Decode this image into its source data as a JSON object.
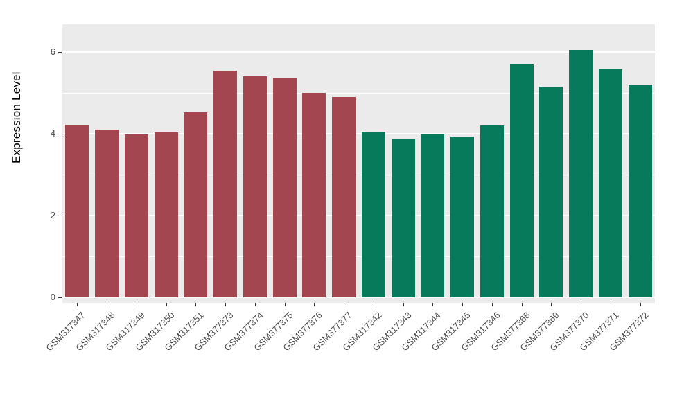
{
  "chart_data": {
    "type": "bar",
    "title": "",
    "xlabel": "",
    "ylabel": "Expression Level",
    "categories": [
      "GSM317347",
      "GSM317348",
      "GSM317349",
      "GSM317350",
      "GSM317351",
      "GSM377373",
      "GSM377374",
      "GSM377375",
      "GSM377376",
      "GSM377377",
      "GSM317342",
      "GSM317343",
      "GSM317344",
      "GSM317345",
      "GSM317346",
      "GSM377368",
      "GSM377369",
      "GSM377370",
      "GSM377371",
      "GSM377372"
    ],
    "values": [
      4.22,
      4.1,
      3.98,
      4.04,
      4.52,
      5.55,
      5.4,
      5.38,
      5.0,
      4.9,
      4.05,
      3.88,
      4.0,
      3.93,
      4.2,
      5.7,
      5.15,
      6.05,
      5.57,
      5.2
    ],
    "groups": [
      "group1",
      "group1",
      "group1",
      "group1",
      "group1",
      "group1",
      "group1",
      "group1",
      "group1",
      "group1",
      "group2",
      "group2",
      "group2",
      "group2",
      "group2",
      "group2",
      "group2",
      "group2",
      "group2",
      "group2"
    ],
    "colors": {
      "group1": "#A3464F",
      "group2": "#067A5B"
    },
    "yticks": [
      0,
      2,
      4,
      6
    ],
    "yticks_minor": [
      1,
      3,
      5
    ],
    "ylim": [
      0,
      6.7
    ],
    "panel_bg": "#EBEBEB",
    "grid_color": "#FFFFFF",
    "legend": "none",
    "grid": "on"
  }
}
